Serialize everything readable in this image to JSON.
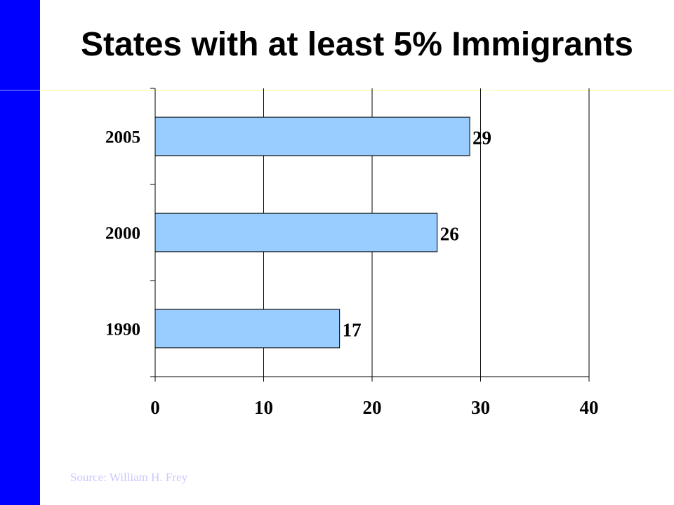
{
  "slide": {
    "title": "States with at least 5% Immigrants",
    "source": "Source: William H. Frey",
    "accent_color": "#0000ff",
    "rule_color": "#ffffcc"
  },
  "chart_data": {
    "type": "bar",
    "orientation": "horizontal",
    "categories": [
      "2005",
      "2000",
      "1990"
    ],
    "values": [
      29,
      26,
      17
    ],
    "data_labels": [
      "29",
      "26",
      "17"
    ],
    "x_ticks": [
      "0",
      "10",
      "20",
      "30",
      "40"
    ],
    "xlim": [
      0,
      40
    ],
    "grid": true,
    "legend": "none",
    "bar_color": "#99ccff",
    "bar_edge_color": "#000000"
  }
}
